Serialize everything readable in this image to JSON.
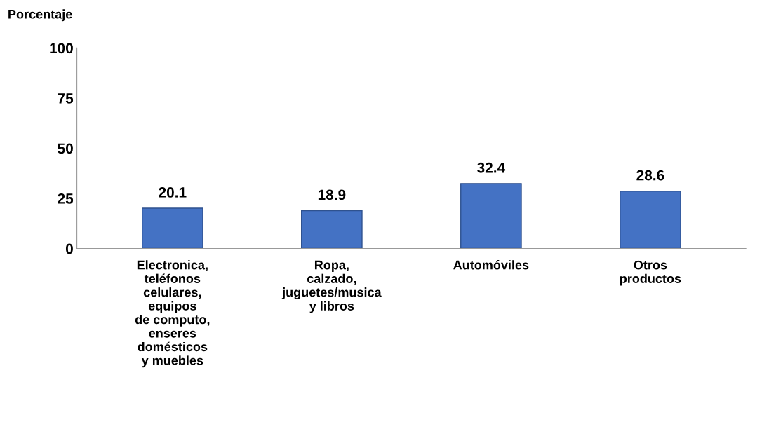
{
  "chart_data": {
    "type": "bar",
    "ylabel": "Porcentaje",
    "categories": [
      "Electronica,\nteléfonos\ncelulares,\nequipos\nde computo,\nenseres\ndomésticos\ny muebles",
      "Ropa,\ncalzado,\njuguetes/musica\ny libros",
      "Automóviles",
      "Otros\nproductos"
    ],
    "values": [
      20.1,
      18.9,
      32.4,
      28.6
    ],
    "color": "#4472c4",
    "ylim": [
      0,
      100
    ],
    "yticks": [
      0,
      25,
      50,
      75,
      100
    ],
    "data_labels": true,
    "grid": false
  }
}
